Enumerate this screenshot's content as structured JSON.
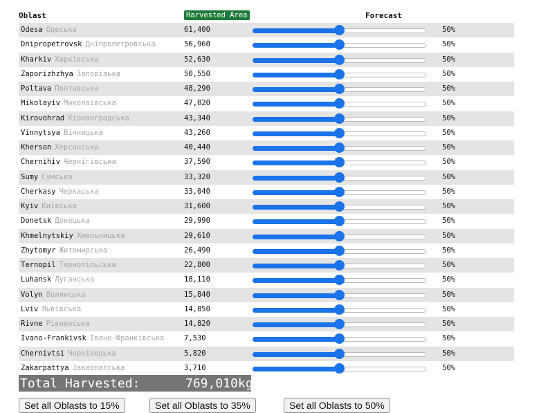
{
  "header": {
    "oblast": "Oblast",
    "harvested_area": "Harvested Area",
    "forecast": "Forecast"
  },
  "rows": [
    {
      "en": "Odesa",
      "uk": "Одеська",
      "area": "61,400",
      "forecast": "50%",
      "level": 0.5
    },
    {
      "en": "Dnipropetrovsk",
      "uk": "Дніпропетровська",
      "area": "56,960",
      "forecast": "50%",
      "level": 0.5
    },
    {
      "en": "Kharkiv",
      "uk": "Харківська",
      "area": "52,630",
      "forecast": "50%",
      "level": 0.5
    },
    {
      "en": "Zaporizhzhya",
      "uk": "Запорізька",
      "area": "50,550",
      "forecast": "50%",
      "level": 0.5
    },
    {
      "en": "Poltava",
      "uk": "Полтавська",
      "area": "48,290",
      "forecast": "50%",
      "level": 0.5
    },
    {
      "en": "Mikolayiv",
      "uk": "Миколаївська",
      "area": "47,020",
      "forecast": "50%",
      "level": 0.5
    },
    {
      "en": "Kirovohrad",
      "uk": "Кіровоградська",
      "area": "43,340",
      "forecast": "50%",
      "level": 0.5
    },
    {
      "en": "Vinnytsya",
      "uk": "Вінницька",
      "area": "43,260",
      "forecast": "50%",
      "level": 0.5
    },
    {
      "en": "Kherson",
      "uk": "Херсонська",
      "area": "40,440",
      "forecast": "50%",
      "level": 0.5
    },
    {
      "en": "Chernihiv",
      "uk": "Чернігівська",
      "area": "37,590",
      "forecast": "50%",
      "level": 0.5
    },
    {
      "en": "Sumy",
      "uk": "Сумська",
      "area": "33,320",
      "forecast": "50%",
      "level": 0.5
    },
    {
      "en": "Cherkasy",
      "uk": "Черкаська",
      "area": "33,040",
      "forecast": "50%",
      "level": 0.5
    },
    {
      "en": "Kyiv",
      "uk": "Київська",
      "area": "31,600",
      "forecast": "50%",
      "level": 0.5
    },
    {
      "en": "Donetsk",
      "uk": "Донецька",
      "area": "29,990",
      "forecast": "50%",
      "level": 0.5
    },
    {
      "en": "Khmelnytskiy",
      "uk": "Хмельницька",
      "area": "29,610",
      "forecast": "50%",
      "level": 0.5
    },
    {
      "en": "Zhytomyr",
      "uk": "Житомирська",
      "area": "26,490",
      "forecast": "50%",
      "level": 0.5
    },
    {
      "en": "Ternopil",
      "uk": "Тернопільська",
      "area": "22,800",
      "forecast": "50%",
      "level": 0.5
    },
    {
      "en": "Luhansk",
      "uk": "Луганська",
      "area": "18,110",
      "forecast": "50%",
      "level": 0.5
    },
    {
      "en": "Volyn",
      "uk": "Волинська",
      "area": "15,840",
      "forecast": "50%",
      "level": 0.5
    },
    {
      "en": "Lviv",
      "uk": "Львівська",
      "area": "14,850",
      "forecast": "50%",
      "level": 0.5
    },
    {
      "en": "Rivne",
      "uk": "Рівненська",
      "area": "14,820",
      "forecast": "50%",
      "level": 0.5
    },
    {
      "en": "Ivano-Frankivsk",
      "uk": "Івано-Франківська",
      "area": "7,530",
      "forecast": "50%",
      "level": 0.5
    },
    {
      "en": "Chernivtsi",
      "uk": "Чернівецька",
      "area": "5,820",
      "forecast": "50%",
      "level": 0.5
    },
    {
      "en": "Zakarpattya",
      "uk": "Закарпатська",
      "area": "3,710",
      "forecast": "50%",
      "level": 0.5
    }
  ],
  "total": {
    "label": "Total Harvested:",
    "value": "769,010kg"
  },
  "buttons": [
    {
      "label": "Set all Oblasts to 15%"
    },
    {
      "label": "Set all Oblasts to 35%"
    },
    {
      "label": "Set all Oblasts to 50%"
    }
  ],
  "colors": {
    "slider_accent": "#1a73e8",
    "header_badge": "#1e7a3a",
    "total_bar": "#757575",
    "row_shade": "#e4e4e4"
  }
}
